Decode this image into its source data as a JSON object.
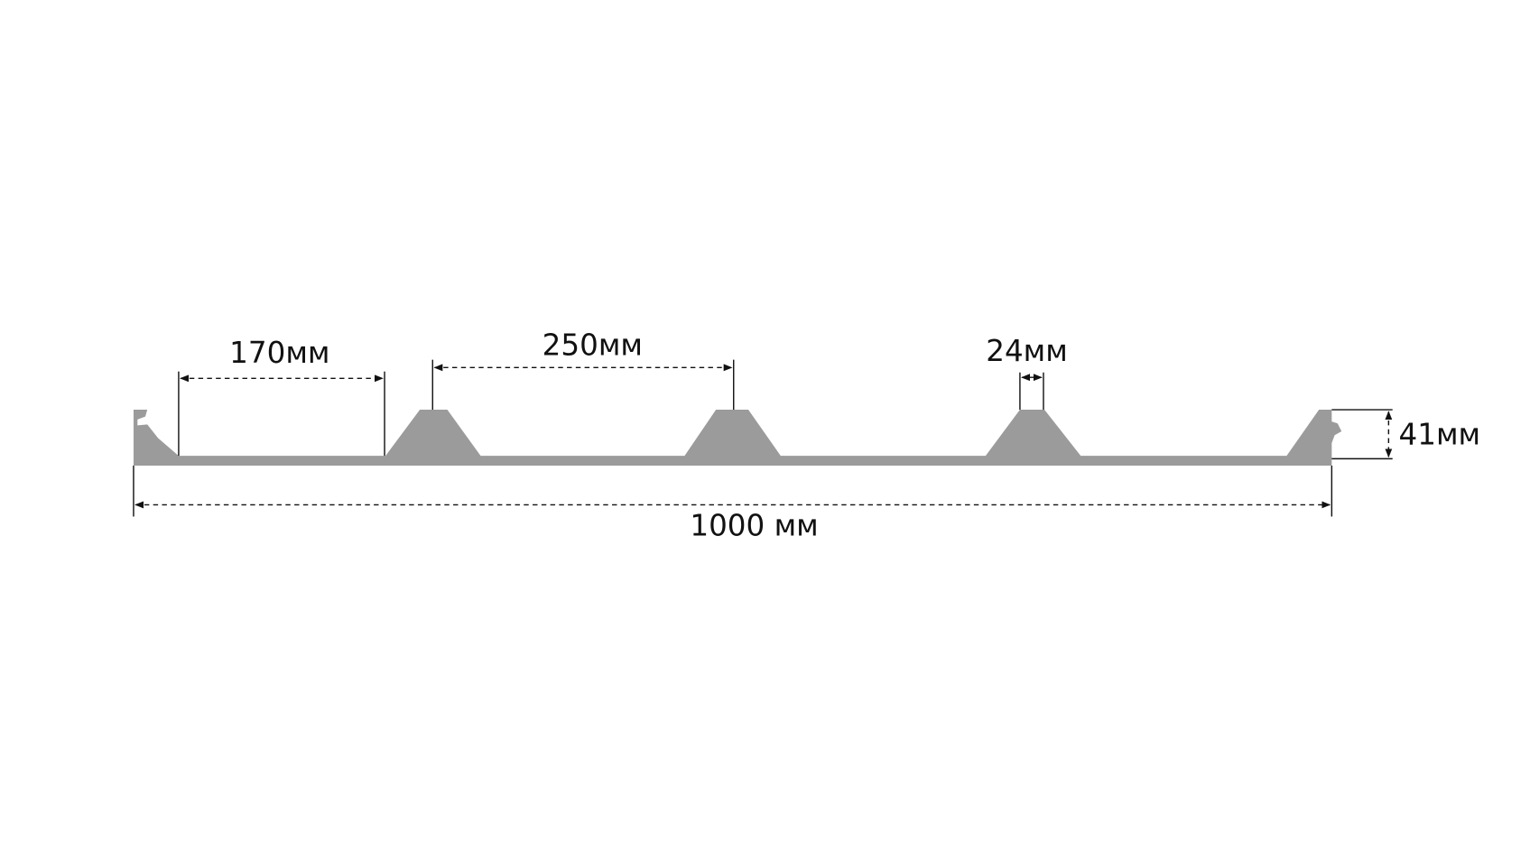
{
  "dimensions": {
    "gap": "170мм",
    "pitch": "250мм",
    "top_width": "24мм",
    "height": "41мм",
    "total_width": "1000 мм"
  }
}
